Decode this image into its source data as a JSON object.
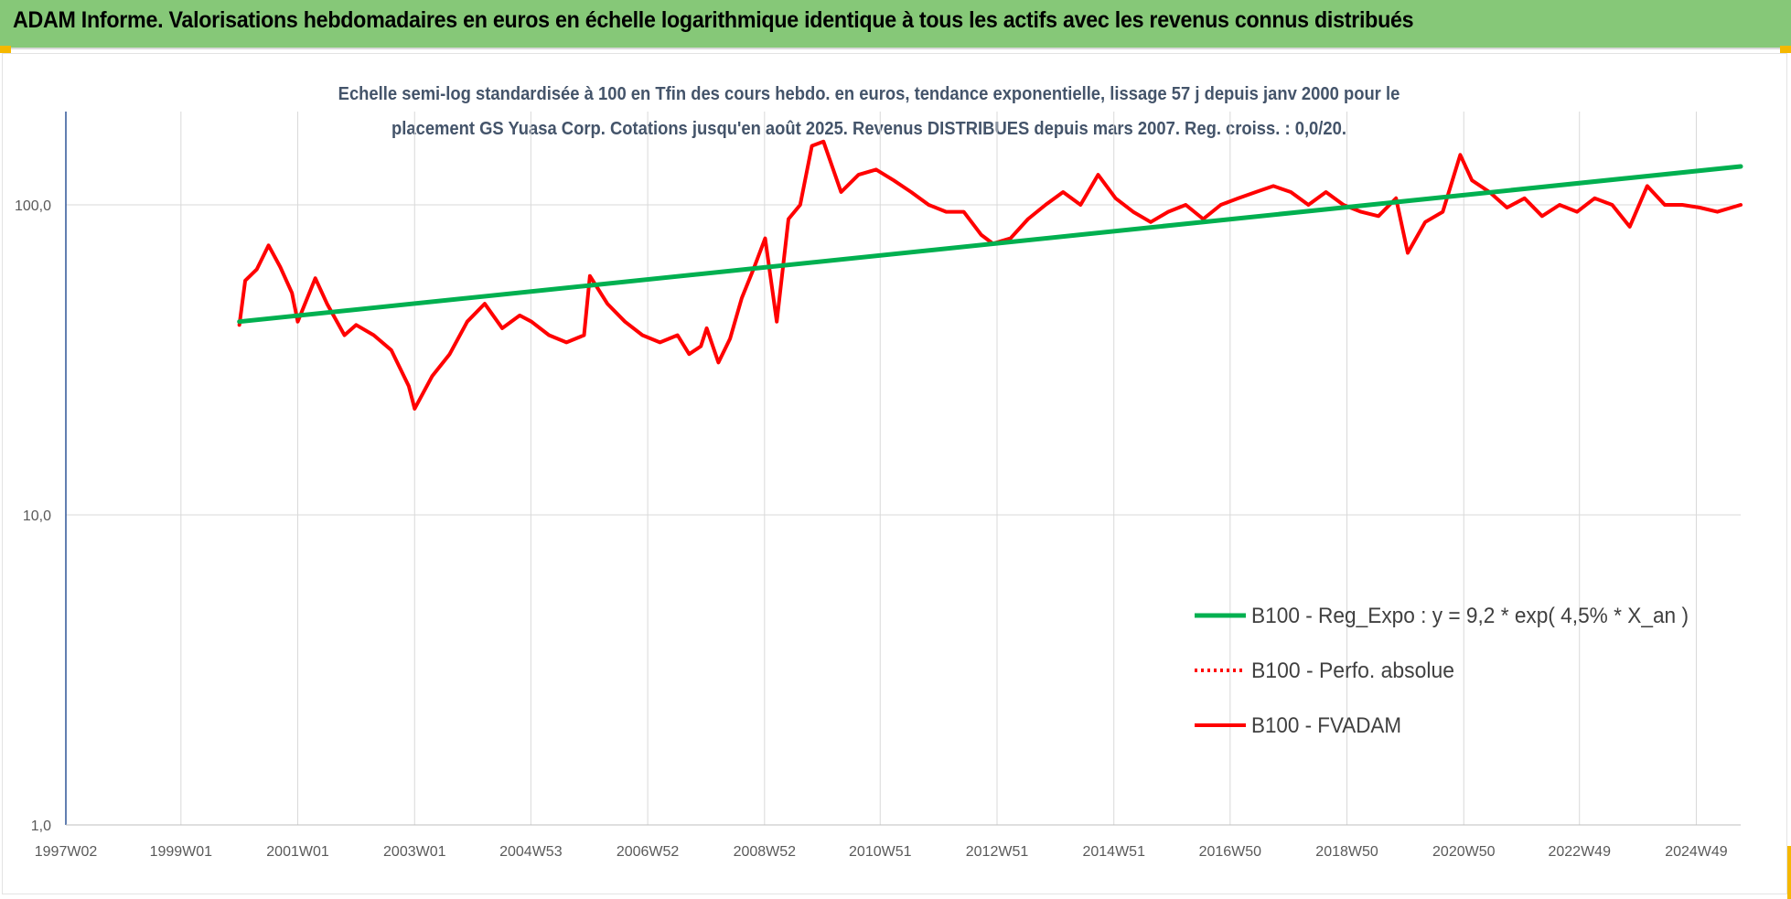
{
  "banner": {
    "title": "ADAM Informe. Valorisations hebdomadaires en euros en échelle logarithmique identique à tous les actifs avec les revenus connus distribués"
  },
  "colors": {
    "banner_bg": "#86c878",
    "regression": "#00b050",
    "fvadam": "#ff0000",
    "perfo": "#ff0000",
    "gridline": "#d9d9d9",
    "corner_accent": "#f5b800"
  },
  "chart_data": {
    "type": "line",
    "title": "Echelle semi-log standardisée à 100 en Tfin des cours hebdo. en euros, tendance exponentielle, lissage 57 j depuis janv 2000 pour le placement GS Yuasa Corp. Cotations jusqu'en août 2025. Revenus DISTRIBUES depuis mars 2007. Reg. croiss. : 0,0/20.",
    "title_lines": [
      "Echelle semi-log standardisée à 100 en Tfin des cours hebdo. en euros, tendance exponentielle, lissage 57 j depuis janv 2000 pour le",
      "placement GS Yuasa Corp. Cotations jusqu'en août 2025. Revenus DISTRIBUES depuis mars 2007. Reg. croiss. : 0,0/20."
    ],
    "y_scale": "log",
    "ylim": [
      1,
      180
    ],
    "y_ticks": [
      1,
      10,
      100
    ],
    "y_tick_labels": [
      "1,0",
      "10,0",
      "100,0"
    ],
    "xlim": [
      1997.03,
      2025.7
    ],
    "x_ticks": [
      1997.03,
      1999.0,
      2001.0,
      2003.0,
      2004.99,
      2006.99,
      2008.99,
      2010.97,
      2012.97,
      2014.97,
      2016.96,
      2018.96,
      2020.96,
      2022.94,
      2024.94
    ],
    "x_tick_labels": [
      "1997W02",
      "1999W01",
      "2001W01",
      "2003W01",
      "2004W53",
      "2006W52",
      "2008W52",
      "2010W51",
      "2012W51",
      "2014W51",
      "2016W50",
      "2018W50",
      "2020W50",
      "2022W49",
      "2024W49"
    ],
    "grid": {
      "vertical": true,
      "horizontal": true
    },
    "legend_position": "center-right",
    "series": [
      {
        "name": "B100 - Reg_Expo : y = 9,2 * exp( 4,5% *  X_an )",
        "style": "solid-green",
        "x": [
          2000.0,
          2025.7
        ],
        "y": [
          42,
          133
        ]
      },
      {
        "name": "B100 - Perfo. absolue",
        "style": "dotted-red",
        "x": [],
        "y": []
      },
      {
        "name": "B100 - FVADAM",
        "style": "solid-red",
        "x": [
          2000.0,
          2000.1,
          2000.3,
          2000.5,
          2000.7,
          2000.9,
          2001.0,
          2001.3,
          2001.5,
          2001.8,
          2002.0,
          2002.3,
          2002.6,
          2002.9,
          2003.0,
          2003.3,
          2003.6,
          2003.9,
          2004.2,
          2004.5,
          2004.8,
          2005.0,
          2005.3,
          2005.6,
          2005.9,
          2006.0,
          2006.3,
          2006.6,
          2006.9,
          2007.2,
          2007.5,
          2007.7,
          2007.9,
          2008.0,
          2008.2,
          2008.4,
          2008.6,
          2008.8,
          2009.0,
          2009.2,
          2009.4,
          2009.6,
          2009.8,
          2010.0,
          2010.3,
          2010.6,
          2010.9,
          2011.2,
          2011.5,
          2011.8,
          2012.1,
          2012.4,
          2012.7,
          2012.9,
          2013.2,
          2013.5,
          2013.8,
          2014.1,
          2014.4,
          2014.7,
          2015.0,
          2015.3,
          2015.6,
          2015.9,
          2016.2,
          2016.5,
          2016.8,
          2017.1,
          2017.4,
          2017.7,
          2018.0,
          2018.3,
          2018.6,
          2018.9,
          2019.2,
          2019.5,
          2019.8,
          2020.0,
          2020.3,
          2020.6,
          2020.9,
          2021.1,
          2021.4,
          2021.7,
          2022.0,
          2022.3,
          2022.6,
          2022.9,
          2023.2,
          2023.5,
          2023.8,
          2024.1,
          2024.4,
          2024.7,
          2025.0,
          2025.3,
          2025.7
        ],
        "y": [
          41,
          57,
          62,
          74,
          63,
          52,
          42,
          58,
          48,
          38,
          41,
          38,
          34,
          26,
          22,
          28,
          33,
          42,
          48,
          40,
          44,
          42,
          38,
          36,
          38,
          59,
          48,
          42,
          38,
          36,
          38,
          33,
          35,
          40,
          31,
          37,
          50,
          62,
          78,
          42,
          90,
          100,
          155,
          160,
          110,
          125,
          130,
          120,
          110,
          100,
          95,
          95,
          80,
          75,
          78,
          90,
          100,
          110,
          100,
          125,
          105,
          95,
          88,
          95,
          100,
          90,
          100,
          105,
          110,
          115,
          110,
          100,
          110,
          100,
          95,
          92,
          105,
          70,
          88,
          95,
          145,
          120,
          110,
          98,
          105,
          92,
          100,
          95,
          105,
          100,
          85,
          115,
          100,
          100,
          98,
          95,
          100
        ]
      }
    ]
  }
}
